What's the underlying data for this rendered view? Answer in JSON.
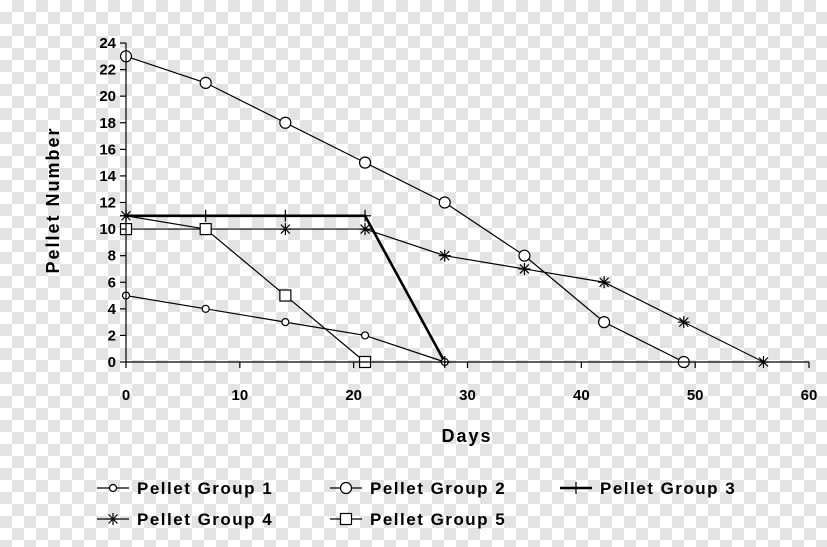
{
  "chart_data": {
    "type": "line",
    "xlabel": "Days",
    "ylabel": "Pellet Number",
    "xlim": [
      0,
      60
    ],
    "ylim": [
      0,
      24
    ],
    "xticks": [
      0,
      10,
      20,
      30,
      40,
      50,
      60
    ],
    "yticks": [
      0,
      2,
      4,
      6,
      8,
      10,
      12,
      14,
      16,
      18,
      20,
      22,
      24
    ],
    "grid": false,
    "legend_position": "bottom",
    "series": [
      {
        "name": "Pellet Group 1",
        "marker": "small-circle",
        "line": "thin",
        "x": [
          0,
          7,
          14,
          21,
          28
        ],
        "y": [
          5,
          4,
          3,
          2,
          0
        ]
      },
      {
        "name": "Pellet Group 2",
        "marker": "large-circle",
        "line": "thin",
        "x": [
          0,
          7,
          14,
          21,
          28,
          35,
          42,
          49
        ],
        "y": [
          23,
          21,
          18,
          15,
          12,
          8,
          3,
          0
        ]
      },
      {
        "name": "Pellet Group 3",
        "marker": "plus",
        "line": "thick",
        "x": [
          0,
          7,
          14,
          21,
          28
        ],
        "y": [
          11,
          11,
          11,
          11,
          0
        ]
      },
      {
        "name": "Pellet Group 4",
        "marker": "asterisk",
        "line": "thin",
        "x": [
          0,
          7,
          14,
          21,
          28,
          35,
          42,
          49,
          56
        ],
        "y": [
          11,
          10,
          10,
          10,
          8,
          7,
          6,
          3,
          0
        ]
      },
      {
        "name": "Pellet Group 5",
        "marker": "square",
        "line": "thin",
        "x": [
          0,
          7,
          14,
          21
        ],
        "y": [
          10,
          10,
          5,
          0
        ]
      }
    ]
  }
}
